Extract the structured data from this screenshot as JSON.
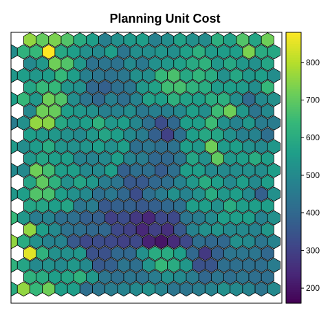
{
  "chart_data": {
    "type": "heatmap",
    "title": "Planning Unit Cost",
    "grid": {
      "rows": 22,
      "cols": 22
    },
    "colorbar": {
      "min": 160,
      "max": 880,
      "ticks": [
        200,
        300,
        400,
        500,
        600,
        700,
        800
      ],
      "palette": "viridis",
      "colors": [
        "#440154",
        "#482878",
        "#3e4989",
        "#31688e",
        "#26828e",
        "#1f9e89",
        "#35b779",
        "#6ece58",
        "#b5de2b",
        "#fde725"
      ]
    },
    "values": [
      [
        null,
        760,
        705,
        735,
        680,
        600,
        560,
        470,
        520,
        545,
        560,
        475,
        510,
        570,
        520,
        505,
        610,
        570,
        680,
        580,
        720,
        null
      ],
      [
        510,
        620,
        640,
        880,
        590,
        560,
        520,
        500,
        560,
        440,
        515,
        510,
        535,
        515,
        565,
        615,
        550,
        555,
        560,
        735,
        600,
        590
      ],
      [
        null,
        500,
        540,
        720,
        680,
        540,
        430,
        440,
        430,
        500,
        450,
        520,
        540,
        565,
        595,
        620,
        540,
        590,
        540,
        520,
        580,
        null
      ],
      [
        540,
        560,
        540,
        555,
        640,
        560,
        470,
        440,
        430,
        445,
        520,
        510,
        640,
        670,
        590,
        630,
        600,
        520,
        585,
        540,
        560,
        510
      ],
      [
        null,
        580,
        640,
        640,
        530,
        520,
        400,
        380,
        420,
        440,
        540,
        570,
        655,
        665,
        620,
        600,
        550,
        560,
        550,
        510,
        640,
        null
      ],
      [
        560,
        640,
        540,
        720,
        680,
        510,
        440,
        400,
        470,
        420,
        480,
        570,
        560,
        615,
        570,
        560,
        600,
        610,
        510,
        410,
        500,
        520
      ],
      [
        null,
        500,
        720,
        710,
        560,
        540,
        520,
        470,
        480,
        510,
        450,
        470,
        470,
        500,
        560,
        515,
        650,
        720,
        540,
        440,
        500,
        null
      ],
      [
        460,
        520,
        760,
        750,
        590,
        540,
        560,
        620,
        540,
        560,
        490,
        420,
        330,
        400,
        560,
        560,
        650,
        520,
        480,
        540,
        460,
        460
      ],
      [
        null,
        560,
        540,
        540,
        520,
        500,
        540,
        580,
        560,
        500,
        460,
        380,
        300,
        420,
        560,
        590,
        580,
        520,
        470,
        480,
        420,
        null
      ],
      [
        550,
        510,
        550,
        600,
        530,
        520,
        530,
        560,
        520,
        560,
        420,
        440,
        420,
        430,
        560,
        540,
        720,
        550,
        560,
        520,
        500,
        540
      ],
      [
        null,
        540,
        580,
        560,
        560,
        480,
        480,
        500,
        560,
        480,
        460,
        400,
        400,
        440,
        580,
        520,
        700,
        540,
        560,
        600,
        560,
        null
      ],
      [
        500,
        500,
        720,
        660,
        560,
        560,
        500,
        500,
        560,
        380,
        420,
        420,
        370,
        420,
        560,
        560,
        500,
        500,
        510,
        520,
        510,
        560
      ],
      [
        null,
        580,
        700,
        620,
        520,
        580,
        540,
        460,
        440,
        360,
        360,
        400,
        420,
        480,
        540,
        600,
        560,
        500,
        560,
        500,
        560,
        null
      ],
      [
        540,
        560,
        680,
        670,
        560,
        520,
        500,
        420,
        450,
        400,
        330,
        420,
        460,
        520,
        480,
        520,
        600,
        540,
        560,
        500,
        380,
        520
      ],
      [
        null,
        580,
        580,
        560,
        580,
        440,
        460,
        360,
        380,
        380,
        360,
        380,
        400,
        420,
        560,
        560,
        520,
        600,
        560,
        560,
        560,
        null
      ],
      [
        640,
        540,
        460,
        480,
        420,
        420,
        380,
        380,
        300,
        330,
        280,
        240,
        320,
        320,
        440,
        460,
        500,
        560,
        560,
        560,
        480,
        520
      ],
      [
        null,
        760,
        560,
        500,
        430,
        420,
        400,
        400,
        320,
        300,
        240,
        300,
        260,
        360,
        480,
        520,
        530,
        500,
        500,
        480,
        540,
        null
      ],
      [
        760,
        600,
        520,
        480,
        480,
        360,
        320,
        330,
        320,
        300,
        320,
        230,
        200,
        250,
        320,
        420,
        400,
        400,
        520,
        500,
        440,
        480
      ],
      [
        null,
        850,
        620,
        520,
        520,
        540,
        340,
        340,
        400,
        400,
        520,
        600,
        600,
        560,
        400,
        280,
        380,
        440,
        440,
        440,
        400,
        null
      ],
      [
        620,
        580,
        500,
        520,
        500,
        540,
        500,
        360,
        380,
        440,
        420,
        530,
        640,
        600,
        540,
        340,
        350,
        420,
        420,
        420,
        420,
        460
      ],
      [
        null,
        620,
        600,
        560,
        580,
        620,
        540,
        440,
        420,
        440,
        430,
        460,
        520,
        500,
        460,
        400,
        440,
        420,
        440,
        420,
        420,
        null
      ],
      [
        600,
        760,
        640,
        720,
        560,
        560,
        420,
        440,
        460,
        480,
        500,
        520,
        480,
        440,
        440,
        460,
        480,
        520,
        500,
        480,
        440,
        500
      ]
    ]
  }
}
